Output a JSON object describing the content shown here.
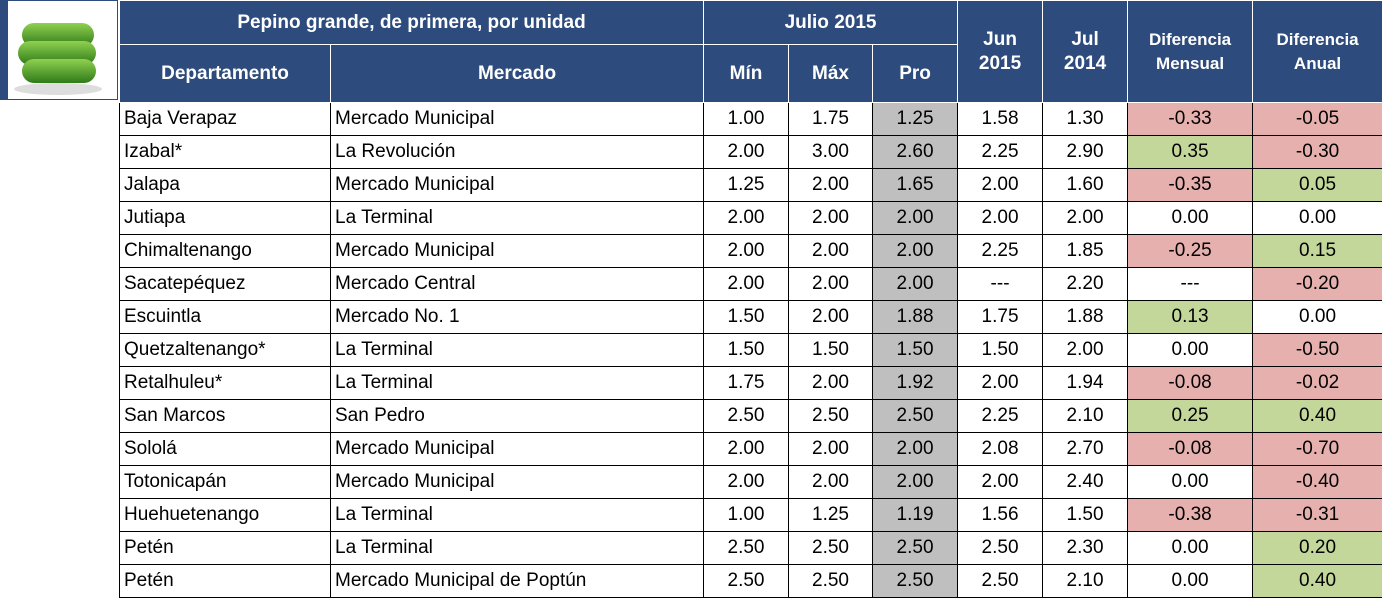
{
  "table": {
    "title": "Pepino grande, de primera, por unidad",
    "period": "Julio 2015",
    "columns": [
      [
        "Departamento"
      ],
      [
        "Mercado"
      ],
      [
        "Mín"
      ],
      [
        "Máx"
      ],
      [
        "Pro"
      ],
      [
        "Jun",
        "2015"
      ],
      [
        "Jul",
        "2014"
      ],
      [
        "Diferencia",
        "Mensual"
      ],
      [
        "Diferencia",
        "Anual"
      ]
    ],
    "rows": [
      [
        "Baja Verapaz",
        "Mercado Municipal",
        "1.00",
        "1.75",
        "1.25",
        "1.58",
        "1.30",
        "-0.33",
        "-0.05"
      ],
      [
        "Izabal*",
        "La Revolución",
        "2.00",
        "3.00",
        "2.60",
        "2.25",
        "2.90",
        "0.35",
        "-0.30"
      ],
      [
        "Jalapa",
        "Mercado Municipal",
        "1.25",
        "2.00",
        "1.65",
        "2.00",
        "1.60",
        "-0.35",
        "0.05"
      ],
      [
        "Jutiapa",
        "La Terminal",
        "2.00",
        "2.00",
        "2.00",
        "2.00",
        "2.00",
        "0.00",
        "0.00"
      ],
      [
        "Chimaltenango",
        "Mercado Municipal",
        "2.00",
        "2.00",
        "2.00",
        "2.25",
        "1.85",
        "-0.25",
        "0.15"
      ],
      [
        "Sacatepéquez",
        "Mercado Central",
        "2.00",
        "2.00",
        "2.00",
        "---",
        "2.20",
        "---",
        "-0.20"
      ],
      [
        "Escuintla",
        "Mercado No. 1",
        "1.50",
        "2.00",
        "1.88",
        "1.75",
        "1.88",
        "0.13",
        "0.00"
      ],
      [
        "Quetzaltenango*",
        "La Terminal",
        "1.50",
        "1.50",
        "1.50",
        "1.50",
        "2.00",
        "0.00",
        "-0.50"
      ],
      [
        "Retalhuleu*",
        "La Terminal",
        "1.75",
        "2.00",
        "1.92",
        "2.00",
        "1.94",
        "-0.08",
        "-0.02"
      ],
      [
        "San Marcos",
        "San Pedro",
        "2.50",
        "2.50",
        "2.50",
        "2.25",
        "2.10",
        "0.25",
        "0.40"
      ],
      [
        "Sololá",
        "Mercado Municipal",
        "2.00",
        "2.00",
        "2.00",
        "2.08",
        "2.70",
        "-0.08",
        "-0.70"
      ],
      [
        "Totonicapán",
        "Mercado Municipal",
        "2.00",
        "2.00",
        "2.00",
        "2.00",
        "2.40",
        "0.00",
        "-0.40"
      ],
      [
        "Huehuetenango",
        "La Terminal",
        "1.00",
        "1.25",
        "1.19",
        "1.56",
        "1.50",
        "-0.38",
        "-0.31"
      ],
      [
        "Petén",
        "La Terminal",
        "2.50",
        "2.50",
        "2.50",
        "2.50",
        "2.30",
        "0.00",
        "0.20"
      ],
      [
        "Petén",
        "Mercado Municipal de Poptún",
        "2.50",
        "2.50",
        "2.50",
        "2.50",
        "2.10",
        "0.00",
        "0.40"
      ]
    ]
  }
}
